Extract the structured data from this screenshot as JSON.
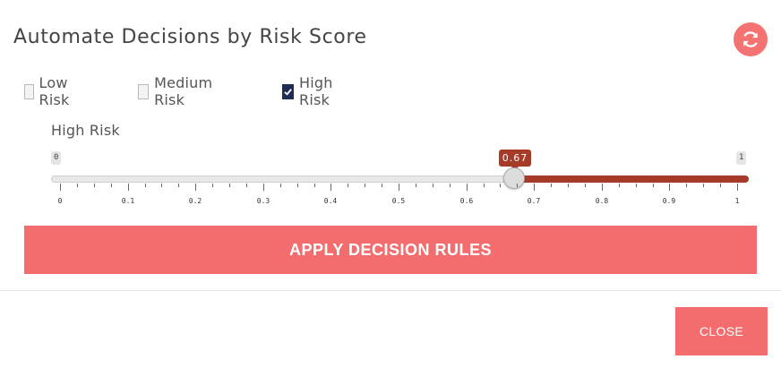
{
  "dialog": {
    "title": "Automate Decisions by Risk Score",
    "refresh_icon": "refresh-icon",
    "accent_color": "#f46d6e"
  },
  "filters": [
    {
      "label": "Low Risk",
      "checked": false
    },
    {
      "label": "Medium Risk",
      "checked": false
    },
    {
      "label": "High Risk",
      "checked": true
    }
  ],
  "slider": {
    "label": "High Risk",
    "min_label": "0",
    "max_label": "1",
    "min": 0,
    "max": 1,
    "value": 0.67,
    "value_label": "0.67",
    "tick_labels": [
      "0",
      "0.1",
      "0.2",
      "0.3",
      "0.4",
      "0.5",
      "0.6",
      "0.7",
      "0.8",
      "0.9",
      "1"
    ],
    "fill_color": "#a63b27"
  },
  "actions": {
    "apply_label": "APPLY DECISION RULES",
    "close_label": "CLOSE"
  }
}
